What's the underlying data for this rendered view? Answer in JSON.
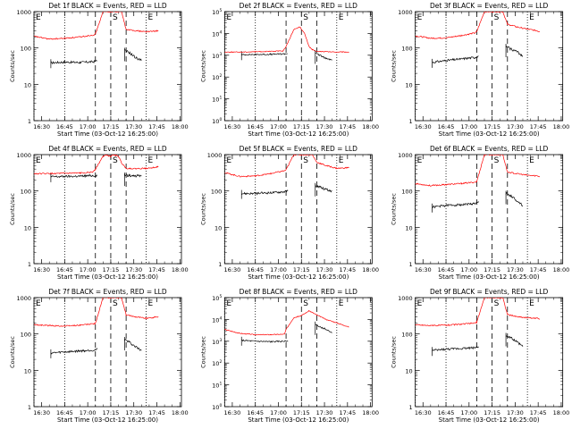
{
  "common": {
    "xlabel": "Start Time (03-Oct-12 16:25:00)",
    "ylabel": "Counts/sec",
    "xticks": [
      "16:30",
      "16:45",
      "17:00",
      "17:15",
      "17:30",
      "17:45",
      "18:00"
    ],
    "xlim_minutes": [
      0,
      96
    ],
    "events_color": "#000000",
    "lld_color": "#ff0000",
    "markers": [
      {
        "label": "E",
        "minute": 0,
        "style": "dotted"
      },
      {
        "label": "",
        "minute": 20,
        "style": "dotted"
      },
      {
        "label": "",
        "minute": 40,
        "style": "dashed"
      },
      {
        "label": "S",
        "minute": 50,
        "style": "dashed"
      },
      {
        "label": "",
        "minute": 60,
        "style": "dashed"
      },
      {
        "label": "E",
        "minute": 73,
        "style": "dotted"
      }
    ]
  },
  "chart_data": [
    {
      "type": "line",
      "title": "Det 1f BLACK = Events, RED = LLD",
      "yscale": "log",
      "ylim": [
        1,
        1000
      ],
      "yticks": [
        "1",
        "10",
        "100",
        "1000"
      ],
      "series": [
        {
          "name": "Events",
          "x": [
            11,
            20,
            30,
            39,
            41
          ],
          "y": [
            39,
            41,
            40,
            42,
            45
          ],
          "gap": [
            39,
            59
          ]
        },
        {
          "name": "LLD",
          "x": [
            0,
            10,
            20,
            30,
            39,
            40,
            45,
            49,
            50,
            57,
            60,
            66,
            73,
            79,
            81
          ],
          "y": [
            210,
            175,
            185,
            200,
            230,
            240,
            1000,
            1000,
            1000,
            1000,
            320,
            300,
            280,
            290,
            300
          ]
        }
      ],
      "events_after": {
        "x": [
          59,
          62,
          66,
          70
        ],
        "y": [
          85,
          75,
          55,
          45
        ]
      }
    },
    {
      "type": "line",
      "title": "Det 2f BLACK = Events, RED = LLD",
      "yscale": "log",
      "ylim": [
        1,
        100000
      ],
      "yticks": [
        "1",
        "10",
        "100",
        "1000",
        "10000",
        "100000"
      ],
      "series": [
        {
          "name": "Events",
          "x": [
            11,
            20,
            30,
            39,
            41
          ],
          "y": [
            1050,
            1080,
            1100,
            1150,
            1200
          ],
          "gap": [
            39,
            59
          ]
        },
        {
          "name": "LLD",
          "x": [
            0,
            10,
            20,
            30,
            38,
            40,
            45,
            49,
            52,
            55,
            57,
            60,
            66,
            73,
            81
          ],
          "y": [
            1400,
            1400,
            1450,
            1500,
            1600,
            2500,
            15000,
            20000,
            10000,
            2500,
            1800,
            1500,
            1450,
            1400,
            1400
          ]
        }
      ],
      "events_after": {
        "x": [
          59,
          62,
          66,
          70
        ],
        "y": [
          1250,
          1000,
          700,
          600
        ]
      }
    },
    {
      "type": "line",
      "title": "Det 3f BLACK = Events, RED = LLD",
      "yscale": "log",
      "ylim": [
        1,
        1000
      ],
      "yticks": [
        "1",
        "10",
        "100",
        "1000"
      ],
      "series": [
        {
          "name": "Events",
          "x": [
            11,
            20,
            30,
            39,
            41
          ],
          "y": [
            40,
            45,
            50,
            55,
            60
          ],
          "gap": [
            39,
            59
          ]
        },
        {
          "name": "LLD",
          "x": [
            0,
            10,
            20,
            30,
            39,
            40,
            45,
            49,
            50,
            57,
            60,
            66,
            73,
            79,
            81
          ],
          "y": [
            215,
            185,
            190,
            220,
            260,
            280,
            1000,
            1000,
            1000,
            1000,
            450,
            380,
            330,
            300,
            280
          ]
        }
      ],
      "events_after": {
        "x": [
          59,
          62,
          66,
          70
        ],
        "y": [
          110,
          95,
          80,
          60
        ]
      }
    },
    {
      "type": "line",
      "title": "Det 4f BLACK = Events, RED = LLD",
      "yscale": "log",
      "ylim": [
        1,
        1000
      ],
      "yticks": [
        "1",
        "10",
        "100",
        "1000"
      ],
      "series": [
        {
          "name": "Events",
          "x": [
            11,
            20,
            30,
            39,
            41
          ],
          "y": [
            245,
            250,
            255,
            265,
            270
          ],
          "gap": [
            39,
            59
          ]
        },
        {
          "name": "LLD",
          "x": [
            0,
            10,
            20,
            30,
            38,
            40,
            45,
            47,
            50,
            52,
            55,
            57,
            60,
            66,
            73,
            79,
            81
          ],
          "y": [
            300,
            300,
            305,
            310,
            330,
            400,
            900,
            1000,
            880,
            1000,
            900,
            600,
            420,
            410,
            420,
            450,
            460
          ]
        }
      ],
      "events_after": {
        "x": [
          59,
          62,
          66,
          70
        ],
        "y": [
          270,
          265,
          260,
          255
        ]
      }
    },
    {
      "type": "line",
      "title": "Det 5f BLACK = Events, RED = LLD",
      "yscale": "log",
      "ylim": [
        1,
        1000
      ],
      "yticks": [
        "1",
        "10",
        "100",
        "1000"
      ],
      "series": [
        {
          "name": "Events",
          "x": [
            11,
            20,
            30,
            39,
            41
          ],
          "y": [
            85,
            85,
            90,
            95,
            100
          ],
          "gap": [
            39,
            59
          ]
        },
        {
          "name": "LLD",
          "x": [
            0,
            10,
            20,
            30,
            39,
            40,
            45,
            49,
            50,
            57,
            60,
            66,
            73,
            79,
            81
          ],
          "y": [
            320,
            250,
            260,
            300,
            360,
            380,
            1000,
            1000,
            1000,
            1000,
            620,
            500,
            420,
            430,
            450
          ]
        }
      ],
      "events_after": {
        "x": [
          59,
          62,
          66,
          70
        ],
        "y": [
          140,
          130,
          110,
          100
        ]
      }
    },
    {
      "type": "line",
      "title": "Det 6f BLACK = Events, RED = LLD",
      "yscale": "log",
      "ylim": [
        1,
        1000
      ],
      "yticks": [
        "1",
        "10",
        "100",
        "1000"
      ],
      "series": [
        {
          "name": "Events",
          "x": [
            11,
            20,
            30,
            39,
            41
          ],
          "y": [
            36,
            40,
            42,
            45,
            48
          ],
          "gap": [
            39,
            59
          ]
        },
        {
          "name": "LLD",
          "x": [
            0,
            10,
            20,
            30,
            39,
            40,
            45,
            49,
            50,
            57,
            60,
            66,
            73,
            79,
            81
          ],
          "y": [
            160,
            140,
            150,
            160,
            175,
            180,
            1000,
            1000,
            1000,
            1000,
            330,
            300,
            270,
            260,
            250
          ]
        }
      ],
      "events_after": {
        "x": [
          59,
          62,
          66,
          70
        ],
        "y": [
          85,
          75,
          55,
          40
        ]
      }
    },
    {
      "type": "line",
      "title": "Det 7f BLACK = Events, RED = LLD",
      "yscale": "log",
      "ylim": [
        1,
        1000
      ],
      "yticks": [
        "1",
        "10",
        "100",
        "1000"
      ],
      "series": [
        {
          "name": "Events",
          "x": [
            11,
            20,
            30,
            39,
            41
          ],
          "y": [
            30,
            32,
            34,
            36,
            38
          ],
          "gap": [
            39,
            59
          ]
        },
        {
          "name": "LLD",
          "x": [
            0,
            10,
            20,
            30,
            39,
            40,
            45,
            49,
            50,
            57,
            60,
            66,
            73,
            79,
            81
          ],
          "y": [
            180,
            170,
            165,
            175,
            190,
            195,
            1000,
            1000,
            1000,
            1000,
            330,
            300,
            270,
            290,
            300
          ]
        }
      ],
      "events_after": {
        "x": [
          59,
          62,
          66,
          70
        ],
        "y": [
          70,
          60,
          45,
          35
        ]
      }
    },
    {
      "type": "line",
      "title": "Det 8f BLACK = Events, RED = LLD",
      "yscale": "log",
      "ylim": [
        1,
        100000
      ],
      "yticks": [
        "1",
        "10",
        "100",
        "1000",
        "10000",
        "100000"
      ],
      "series": [
        {
          "name": "Events",
          "x": [
            11,
            20,
            30,
            39,
            41
          ],
          "y": [
            1100,
            1000,
            950,
            1000,
            1050
          ],
          "gap": [
            39,
            59
          ]
        },
        {
          "name": "LLD",
          "x": [
            0,
            5,
            10,
            20,
            30,
            39,
            40,
            45,
            50,
            55,
            60,
            66,
            73,
            79,
            81
          ],
          "y": [
            3500,
            2800,
            2300,
            2000,
            2000,
            2100,
            3500,
            12000,
            15000,
            25000,
            16000,
            10000,
            7000,
            5000,
            4500
          ]
        }
      ],
      "events_after": {
        "x": [
          59,
          62,
          66,
          70
        ],
        "y": [
          6000,
          4500,
          3500,
          2500
        ]
      }
    },
    {
      "type": "line",
      "title": "Det 9f BLACK = Events, RED = LLD",
      "yscale": "log",
      "ylim": [
        1,
        1000
      ],
      "yticks": [
        "1",
        "10",
        "100",
        "1000"
      ],
      "series": [
        {
          "name": "Events",
          "x": [
            11,
            20,
            30,
            39,
            41
          ],
          "y": [
            35,
            38,
            40,
            42,
            45
          ],
          "gap": [
            39,
            59
          ]
        },
        {
          "name": "LLD",
          "x": [
            0,
            10,
            20,
            30,
            39,
            40,
            45,
            49,
            50,
            57,
            60,
            66,
            73,
            79,
            81
          ],
          "y": [
            180,
            170,
            175,
            185,
            200,
            210,
            1000,
            1000,
            1000,
            1000,
            340,
            300,
            280,
            270,
            260
          ]
        }
      ],
      "events_after": {
        "x": [
          59,
          62,
          66,
          70
        ],
        "y": [
          90,
          80,
          60,
          45
        ]
      }
    }
  ]
}
